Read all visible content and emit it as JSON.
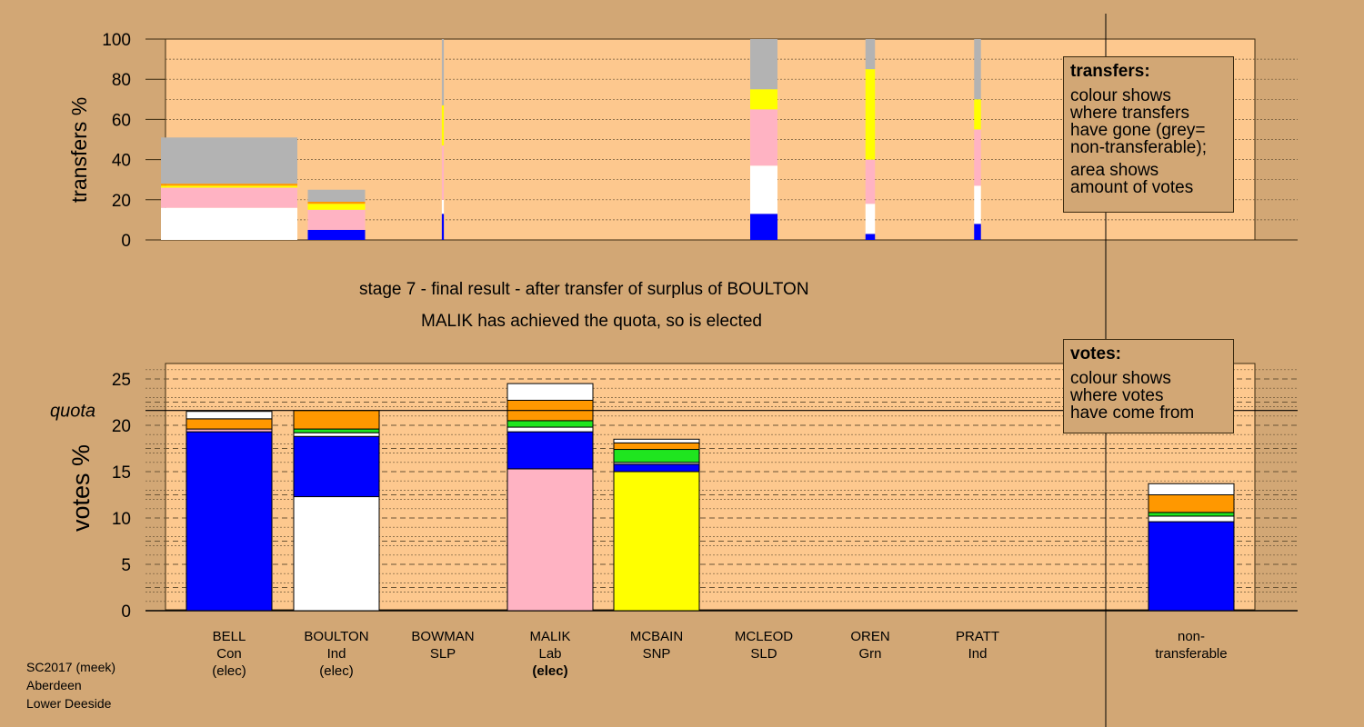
{
  "colors": {
    "background": "#d2a775",
    "plot_bg": "#fdc88e",
    "Con": "#0000ff",
    "Ind": "#ffffff",
    "Lab": "#ffb3c3",
    "SNP": "#ffff00",
    "SLD": "#ff9800",
    "Grn": "#1fe51f",
    "SLP": "#c00000",
    "non-transferable": "#b3b3b3",
    "elected_text": "#000000"
  },
  "titles": {
    "stage": "stage 7 - final result - after transfer of surplus of BOULTON",
    "result": "MALIK has achieved the quota, so is elected"
  },
  "footer": [
    "SC2017 (meek)",
    "Aberdeen",
    "Lower Deeside"
  ],
  "legend_transfers": {
    "title": "transfers:",
    "lines_a": [
      "colour shows",
      "where transfers",
      "have gone (grey=",
      "non-transferable);"
    ],
    "lines_b": [
      "area shows",
      "amount of votes"
    ]
  },
  "legend_votes": {
    "title": "votes:",
    "lines": [
      "colour shows",
      "where votes",
      "have come from"
    ]
  },
  "candidates": [
    {
      "name": "BELL",
      "party": "Con",
      "status": "(elec)",
      "status_bold": false
    },
    {
      "name": "BOULTON",
      "party": "Ind",
      "status": "(elec)",
      "status_bold": false
    },
    {
      "name": "BOWMAN",
      "party": "SLP",
      "status": "",
      "status_bold": false
    },
    {
      "name": "MALIK",
      "party": "Lab",
      "status": "(elec)",
      "status_bold": true
    },
    {
      "name": "MCBAIN",
      "party": "SNP",
      "status": "",
      "status_bold": false
    },
    {
      "name": "MCLEOD",
      "party": "SLD",
      "status": "",
      "status_bold": false
    },
    {
      "name": "OREN",
      "party": "Grn",
      "status": "",
      "status_bold": false
    },
    {
      "name": "PRATT",
      "party": "Ind",
      "status": "",
      "status_bold": false
    },
    {
      "name": "non-",
      "party": "transferable",
      "status": "",
      "status_bold": false
    }
  ],
  "chart_data": [
    {
      "type": "bar",
      "subtype": "stacked-variable-width",
      "ylabel": "transfers %",
      "ylim": [
        0,
        100
      ],
      "yticks": [
        0,
        20,
        40,
        60,
        80,
        100
      ],
      "grid": true,
      "note": "bar width shows amount of votes transferred; colour shows destination",
      "bars": [
        {
          "candidate": "BELL",
          "width_share": 1.0,
          "segments": [
            {
              "to": "Ind",
              "value": 16
            },
            {
              "to": "Lab",
              "value": 10
            },
            {
              "to": "SNP",
              "value": 1
            },
            {
              "to": "SLD",
              "value": 1
            },
            {
              "to": "non-transferable",
              "value": 23
            }
          ]
        },
        {
          "candidate": "BOULTON",
          "width_share": 0.42,
          "segments": [
            {
              "to": "Con",
              "value": 5
            },
            {
              "to": "Lab",
              "value": 10
            },
            {
              "to": "SNP",
              "value": 3
            },
            {
              "to": "SLD",
              "value": 1
            },
            {
              "to": "non-transferable",
              "value": 6
            }
          ]
        },
        {
          "candidate": "BOWMAN",
          "width_share": 0.015,
          "segments": [
            {
              "to": "Con",
              "value": 13
            },
            {
              "to": "Ind",
              "value": 7
            },
            {
              "to": "Lab",
              "value": 27
            },
            {
              "to": "SNP",
              "value": 20
            },
            {
              "to": "non-transferable",
              "value": 33
            }
          ]
        },
        {
          "candidate": "MCLEOD",
          "width_share": 0.2,
          "segments": [
            {
              "to": "Con",
              "value": 13
            },
            {
              "to": "Ind",
              "value": 24
            },
            {
              "to": "Lab",
              "value": 28
            },
            {
              "to": "SNP",
              "value": 10
            },
            {
              "to": "non-transferable",
              "value": 25
            }
          ]
        },
        {
          "candidate": "OREN",
          "width_share": 0.07,
          "segments": [
            {
              "to": "Con",
              "value": 3
            },
            {
              "to": "Ind",
              "value": 15
            },
            {
              "to": "Lab",
              "value": 22
            },
            {
              "to": "SNP",
              "value": 45
            },
            {
              "to": "non-transferable",
              "value": 15
            }
          ]
        },
        {
          "candidate": "PRATT",
          "width_share": 0.05,
          "segments": [
            {
              "to": "Con",
              "value": 8
            },
            {
              "to": "Ind",
              "value": 19
            },
            {
              "to": "Lab",
              "value": 28
            },
            {
              "to": "SNP",
              "value": 15
            },
            {
              "to": "non-transferable",
              "value": 30
            }
          ]
        }
      ]
    },
    {
      "type": "bar",
      "subtype": "stacked",
      "ylabel": "votes %",
      "ylim": [
        0,
        26.5
      ],
      "yticks": [
        0,
        5,
        10,
        15,
        20,
        25
      ],
      "grid": true,
      "quota": 21.6,
      "quota_label": "quota",
      "bars": [
        {
          "candidate": "BELL",
          "segments": [
            {
              "from": "Con",
              "value": 19.3
            },
            {
              "from": "Lab",
              "value": 0.3
            },
            {
              "from": "SLD",
              "value": 1.1
            },
            {
              "from": "Ind",
              "value": 0.8
            }
          ]
        },
        {
          "candidate": "BOULTON",
          "segments": [
            {
              "from": "Ind",
              "value": 12.3
            },
            {
              "from": "Con",
              "value": 6.5
            },
            {
              "from": "Ind",
              "value": 0.4
            },
            {
              "from": "Grn",
              "value": 0.4
            },
            {
              "from": "SLD",
              "value": 2.0
            }
          ]
        },
        {
          "candidate": "BOWMAN",
          "segments": []
        },
        {
          "candidate": "MALIK",
          "segments": [
            {
              "from": "Lab",
              "value": 15.3
            },
            {
              "from": "Con",
              "value": 4.0
            },
            {
              "from": "Ind",
              "value": 0.5
            },
            {
              "from": "Grn",
              "value": 0.7
            },
            {
              "from": "SLD",
              "value": 2.2
            },
            {
              "from": "Ind",
              "value": 1.8
            }
          ]
        },
        {
          "candidate": "MCBAIN",
          "segments": [
            {
              "from": "SNP",
              "value": 15.0
            },
            {
              "from": "Con",
              "value": 0.8
            },
            {
              "from": "Ind",
              "value": 0.2
            },
            {
              "from": "Grn",
              "value": 1.4
            },
            {
              "from": "SLD",
              "value": 0.7
            },
            {
              "from": "Ind",
              "value": 0.4
            }
          ]
        },
        {
          "candidate": "MCLEOD",
          "segments": []
        },
        {
          "candidate": "OREN",
          "segments": []
        },
        {
          "candidate": "PRATT",
          "segments": []
        },
        {
          "candidate": "non-transferable",
          "segments": [
            {
              "from": "Con",
              "value": 9.6
            },
            {
              "from": "Ind",
              "value": 0.6
            },
            {
              "from": "Grn",
              "value": 0.4
            },
            {
              "from": "SLD",
              "value": 1.9
            },
            {
              "from": "Ind",
              "value": 1.2
            }
          ]
        }
      ]
    }
  ]
}
